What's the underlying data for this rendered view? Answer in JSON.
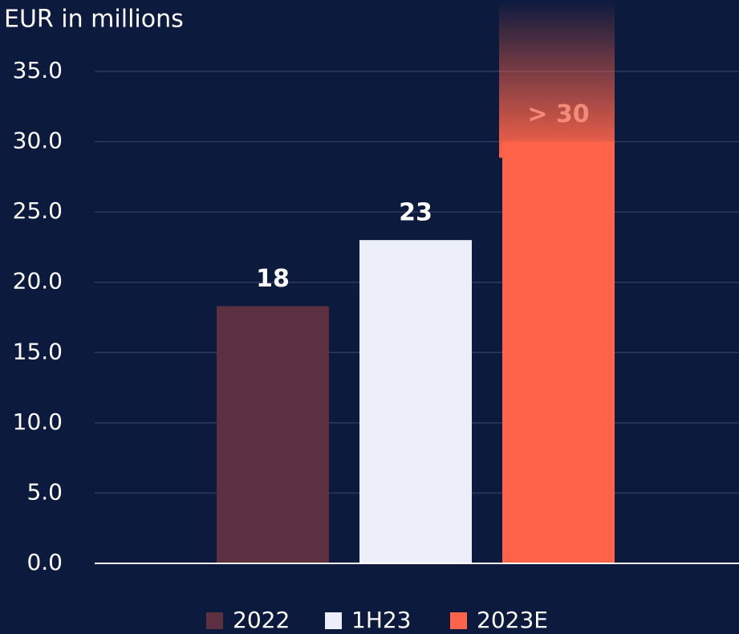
{
  "chart_data": {
    "type": "bar",
    "y_label": "EUR in millions",
    "categories": [
      "2022",
      "1H23",
      "2023E"
    ],
    "values": [
      18.3,
      23,
      30
    ],
    "value_labels": [
      "18",
      "23",
      "> 30"
    ],
    "colors": [
      "#5c3040",
      "#eceffa",
      "#ff644a"
    ],
    "value_label_colors": [
      "#ffffff",
      "#ffffff",
      "#f28b78"
    ],
    "ylim": [
      0,
      40
    ],
    "yticks": [
      {
        "value": 0,
        "label": "0.0"
      },
      {
        "value": 5,
        "label": "5.0"
      },
      {
        "value": 10,
        "label": "10.0"
      },
      {
        "value": 15,
        "label": "15.0"
      },
      {
        "value": 20,
        "label": "20.0"
      },
      {
        "value": 25,
        "label": "25.0"
      },
      {
        "value": 30,
        "label": "30.0"
      },
      {
        "value": 35,
        "label": "35.0"
      }
    ],
    "grid": true,
    "legend": "bottom"
  }
}
